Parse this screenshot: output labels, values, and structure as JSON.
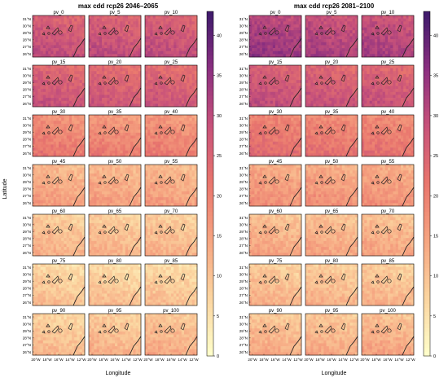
{
  "chart_data": [
    {
      "type": "heatmap",
      "title": "max cdd rcp26 2046–2065",
      "xlabel": "Longitude",
      "ylabel": "Latitude",
      "panels": [
        "pv_0",
        "pv_5",
        "pv_10",
        "pv_15",
        "pv_20",
        "pv_25",
        "pv_30",
        "pv_35",
        "pv_40",
        "pv_45",
        "pv_50",
        "pv_55",
        "pv_60",
        "pv_65",
        "pv_70",
        "pv_75",
        "pv_80",
        "pv_85",
        "pv_90",
        "pv_95",
        "pv_100"
      ],
      "x_ticks": [
        "20°W",
        "18°W",
        "16°W",
        "14°W",
        "12°W"
      ],
      "y_ticks": [
        "31°N",
        "30°N",
        "29°N",
        "28°N",
        "27°N",
        "26°N"
      ],
      "panel_mean_values": [
        26,
        26,
        26,
        25,
        24,
        24,
        18,
        17,
        17,
        12,
        12,
        12,
        9,
        9,
        9,
        7,
        7,
        7,
        8,
        9,
        10
      ]
    },
    {
      "type": "heatmap",
      "title": "max cdd rcp26 2081–2100",
      "xlabel": "Longitude",
      "ylabel": "",
      "panels": [
        "pv_0",
        "pv_5",
        "pv_10",
        "pv_15",
        "pv_20",
        "pv_25",
        "pv_30",
        "pv_35",
        "pv_40",
        "pv_45",
        "pv_50",
        "pv_55",
        "pv_60",
        "pv_65",
        "pv_70",
        "pv_75",
        "pv_80",
        "pv_85",
        "pv_90",
        "pv_95",
        "pv_100"
      ],
      "x_ticks": [
        "20°W",
        "18°W",
        "16°W",
        "14°W",
        "12°W"
      ],
      "y_ticks": [
        "31°N",
        "30°N",
        "29°N",
        "28°N",
        "27°N",
        "26°N"
      ],
      "panel_mean_values": [
        31,
        29,
        29,
        26,
        25,
        25,
        20,
        19,
        19,
        14,
        14,
        14,
        11,
        11,
        11,
        9,
        9,
        9,
        10,
        10,
        11
      ]
    }
  ],
  "colorbar": {
    "ticks": [
      0,
      5,
      10,
      15,
      20,
      25,
      30,
      35,
      40
    ],
    "range": [
      0,
      43
    ],
    "colors": [
      "#ffffcc",
      "#fbd5a0",
      "#f6a581",
      "#e9766d",
      "#c8527a",
      "#8b2f80",
      "#3d1a6b"
    ]
  }
}
